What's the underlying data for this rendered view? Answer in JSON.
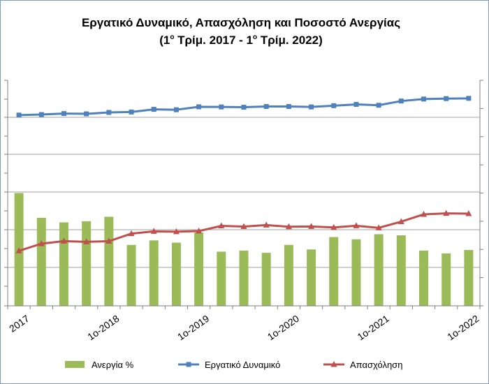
{
  "chart_data": {
    "type": "bar+line",
    "title": "Εργατικό Δυναμικό, Απασχόληση και Ποσοστό Ανεργίας",
    "subtitle": {
      "prefix1": "(1",
      "sup1": "ο",
      "middle": " Τρίμ. 2017 - 1",
      "sup2": "ο",
      "suffix": " Τρίμ. 2022)"
    },
    "x_tick_labels": [
      {
        "index": 0,
        "text": "2017"
      },
      {
        "index": 4,
        "text": "1ο-2018"
      },
      {
        "index": 8,
        "text": "1ο-2019"
      },
      {
        "index": 12,
        "text": "1ο-2020"
      },
      {
        "index": 16,
        "text": "1ο-2021"
      },
      {
        "index": 20,
        "text": "1ο-2022"
      }
    ],
    "x_count": 21,
    "gridlines": true,
    "legend_position": "bottom",
    "series": [
      {
        "name": "Ανεργία %",
        "kind": "bar",
        "axis": "right",
        "color": "#9bbb59",
        "values": [
          20.0,
          15.6,
          14.8,
          15.0,
          15.8,
          10.8,
          11.6,
          11.2,
          13.0,
          9.6,
          9.8,
          9.4,
          10.8,
          10.0,
          12.2,
          11.8,
          12.7,
          12.5,
          9.8,
          9.3,
          9.9
        ]
      },
      {
        "name": "Εργατικό Δυναμικό",
        "kind": "line",
        "axis": "left",
        "marker": "square",
        "color": "#4f81bd",
        "values": [
          4753,
          4757,
          4764,
          4762,
          4772,
          4775,
          4794,
          4791,
          4812,
          4811,
          4809,
          4814,
          4814,
          4811,
          4820,
          4829,
          4823,
          4853,
          4867,
          4870,
          4872
        ]
      },
      {
        "name": "Απασχόληση",
        "kind": "line",
        "axis": "left",
        "marker": "triangle",
        "color": "#c0504d",
        "values": [
          3790,
          3841,
          3859,
          3854,
          3858,
          3912,
          3928,
          3926,
          3930,
          3967,
          3962,
          3973,
          3961,
          3963,
          3956,
          3968,
          3953,
          3997,
          4049,
          4056,
          4054
        ]
      }
    ],
    "left_axis": {
      "range": [
        3400,
        5000
      ]
    },
    "right_axis": {
      "range": [
        0,
        40
      ]
    }
  }
}
